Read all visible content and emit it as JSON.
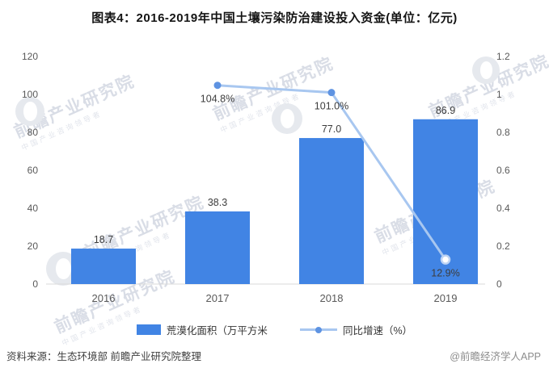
{
  "title": "图表4：2016-2019年中国土壤污染防治建设投入资金(单位：亿元)",
  "chart_data": {
    "type": "bar+line combo",
    "title": "图表4：2016-2019年中国土壤污染防治建设投入资金(单位：亿元)",
    "categories": [
      "2016",
      "2017",
      "2018",
      "2019"
    ],
    "series": [
      {
        "name": "荒漠化面积（万平方米",
        "type": "bar",
        "axis": "left",
        "values": [
          18.7,
          38.3,
          77.0,
          86.9
        ],
        "labels": [
          "18.7",
          "38.3",
          "77.0",
          "86.9"
        ],
        "color": "#4184E4"
      },
      {
        "name": "同比增速（%）",
        "type": "line",
        "axis": "right",
        "values": [
          null,
          104.8,
          101.0,
          12.9
        ],
        "axis_values": [
          null,
          1.048,
          1.01,
          0.129
        ],
        "labels": [
          null,
          "104.8%",
          "101.0%",
          "12.9%"
        ],
        "color": "#A8C7F0",
        "marker_color": "#5E93E2",
        "last_marker_style": "hollow",
        "hollow_stroke": "#BCD3F4"
      }
    ],
    "left_axis": {
      "min": 0,
      "max": 120,
      "step": 20,
      "tick_labels": [
        "0",
        "20",
        "40",
        "60",
        "80",
        "100",
        "120"
      ]
    },
    "right_axis": {
      "min": 0,
      "max": 1.2,
      "step": 0.2,
      "tick_labels": [
        "0",
        "0.2",
        "0.4",
        "0.6",
        "0.8",
        "1",
        "1.2"
      ]
    },
    "grid": false,
    "legend_position": "bottom",
    "axis_line_color": "#D9D9D9",
    "tick_label_color": "#595959",
    "value_label_color": "#3D3D3D"
  },
  "footer": {
    "source": "资料来源：生态环境部 前瞻产业研究院整理",
    "credit": "@前瞻经济学人APP"
  },
  "watermark": {
    "text": "前瞻产业研究院",
    "subtext": "中国产业咨询领导者"
  }
}
